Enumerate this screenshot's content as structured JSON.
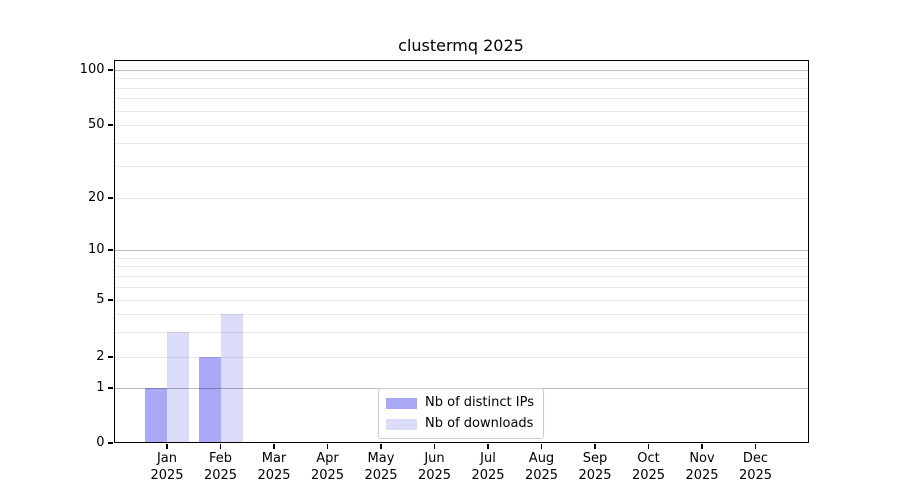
{
  "chart_data": {
    "type": "bar",
    "title": "clustermq 2025",
    "year": "2025",
    "categories_months": [
      "Jan",
      "Feb",
      "Mar",
      "Apr",
      "May",
      "Jun",
      "Jul",
      "Aug",
      "Sep",
      "Oct",
      "Nov",
      "Dec"
    ],
    "series": [
      {
        "name": "Nb of distinct IPs",
        "color": "#a9a9f7",
        "values": [
          1,
          2,
          0,
          0,
          0,
          0,
          0,
          0,
          0,
          0,
          0,
          0
        ]
      },
      {
        "name": "Nb of downloads",
        "color": "#dbdcfa",
        "values": [
          3,
          4,
          0,
          0,
          0,
          0,
          0,
          0,
          0,
          0,
          0,
          0
        ]
      }
    ],
    "y_axis": {
      "scale": "log-like with 0 baseline",
      "ticks": [
        0,
        1,
        2,
        5,
        10,
        20,
        50,
        100
      ],
      "major_gridlines": [
        1,
        10,
        100
      ],
      "minor_gridlines": [
        2,
        3,
        4,
        5,
        6,
        7,
        8,
        9,
        20,
        30,
        40,
        50,
        60,
        70,
        80,
        90
      ],
      "ylim": [
        0,
        120
      ]
    },
    "x_axis": {
      "tick_style": "month centered, two-line label (month / year)"
    },
    "legend": {
      "position": "lower center inside plot",
      "entries": [
        "Nb of distinct IPs",
        "Nb of downloads"
      ]
    },
    "grid": "horizontal only, drawn over bars"
  }
}
